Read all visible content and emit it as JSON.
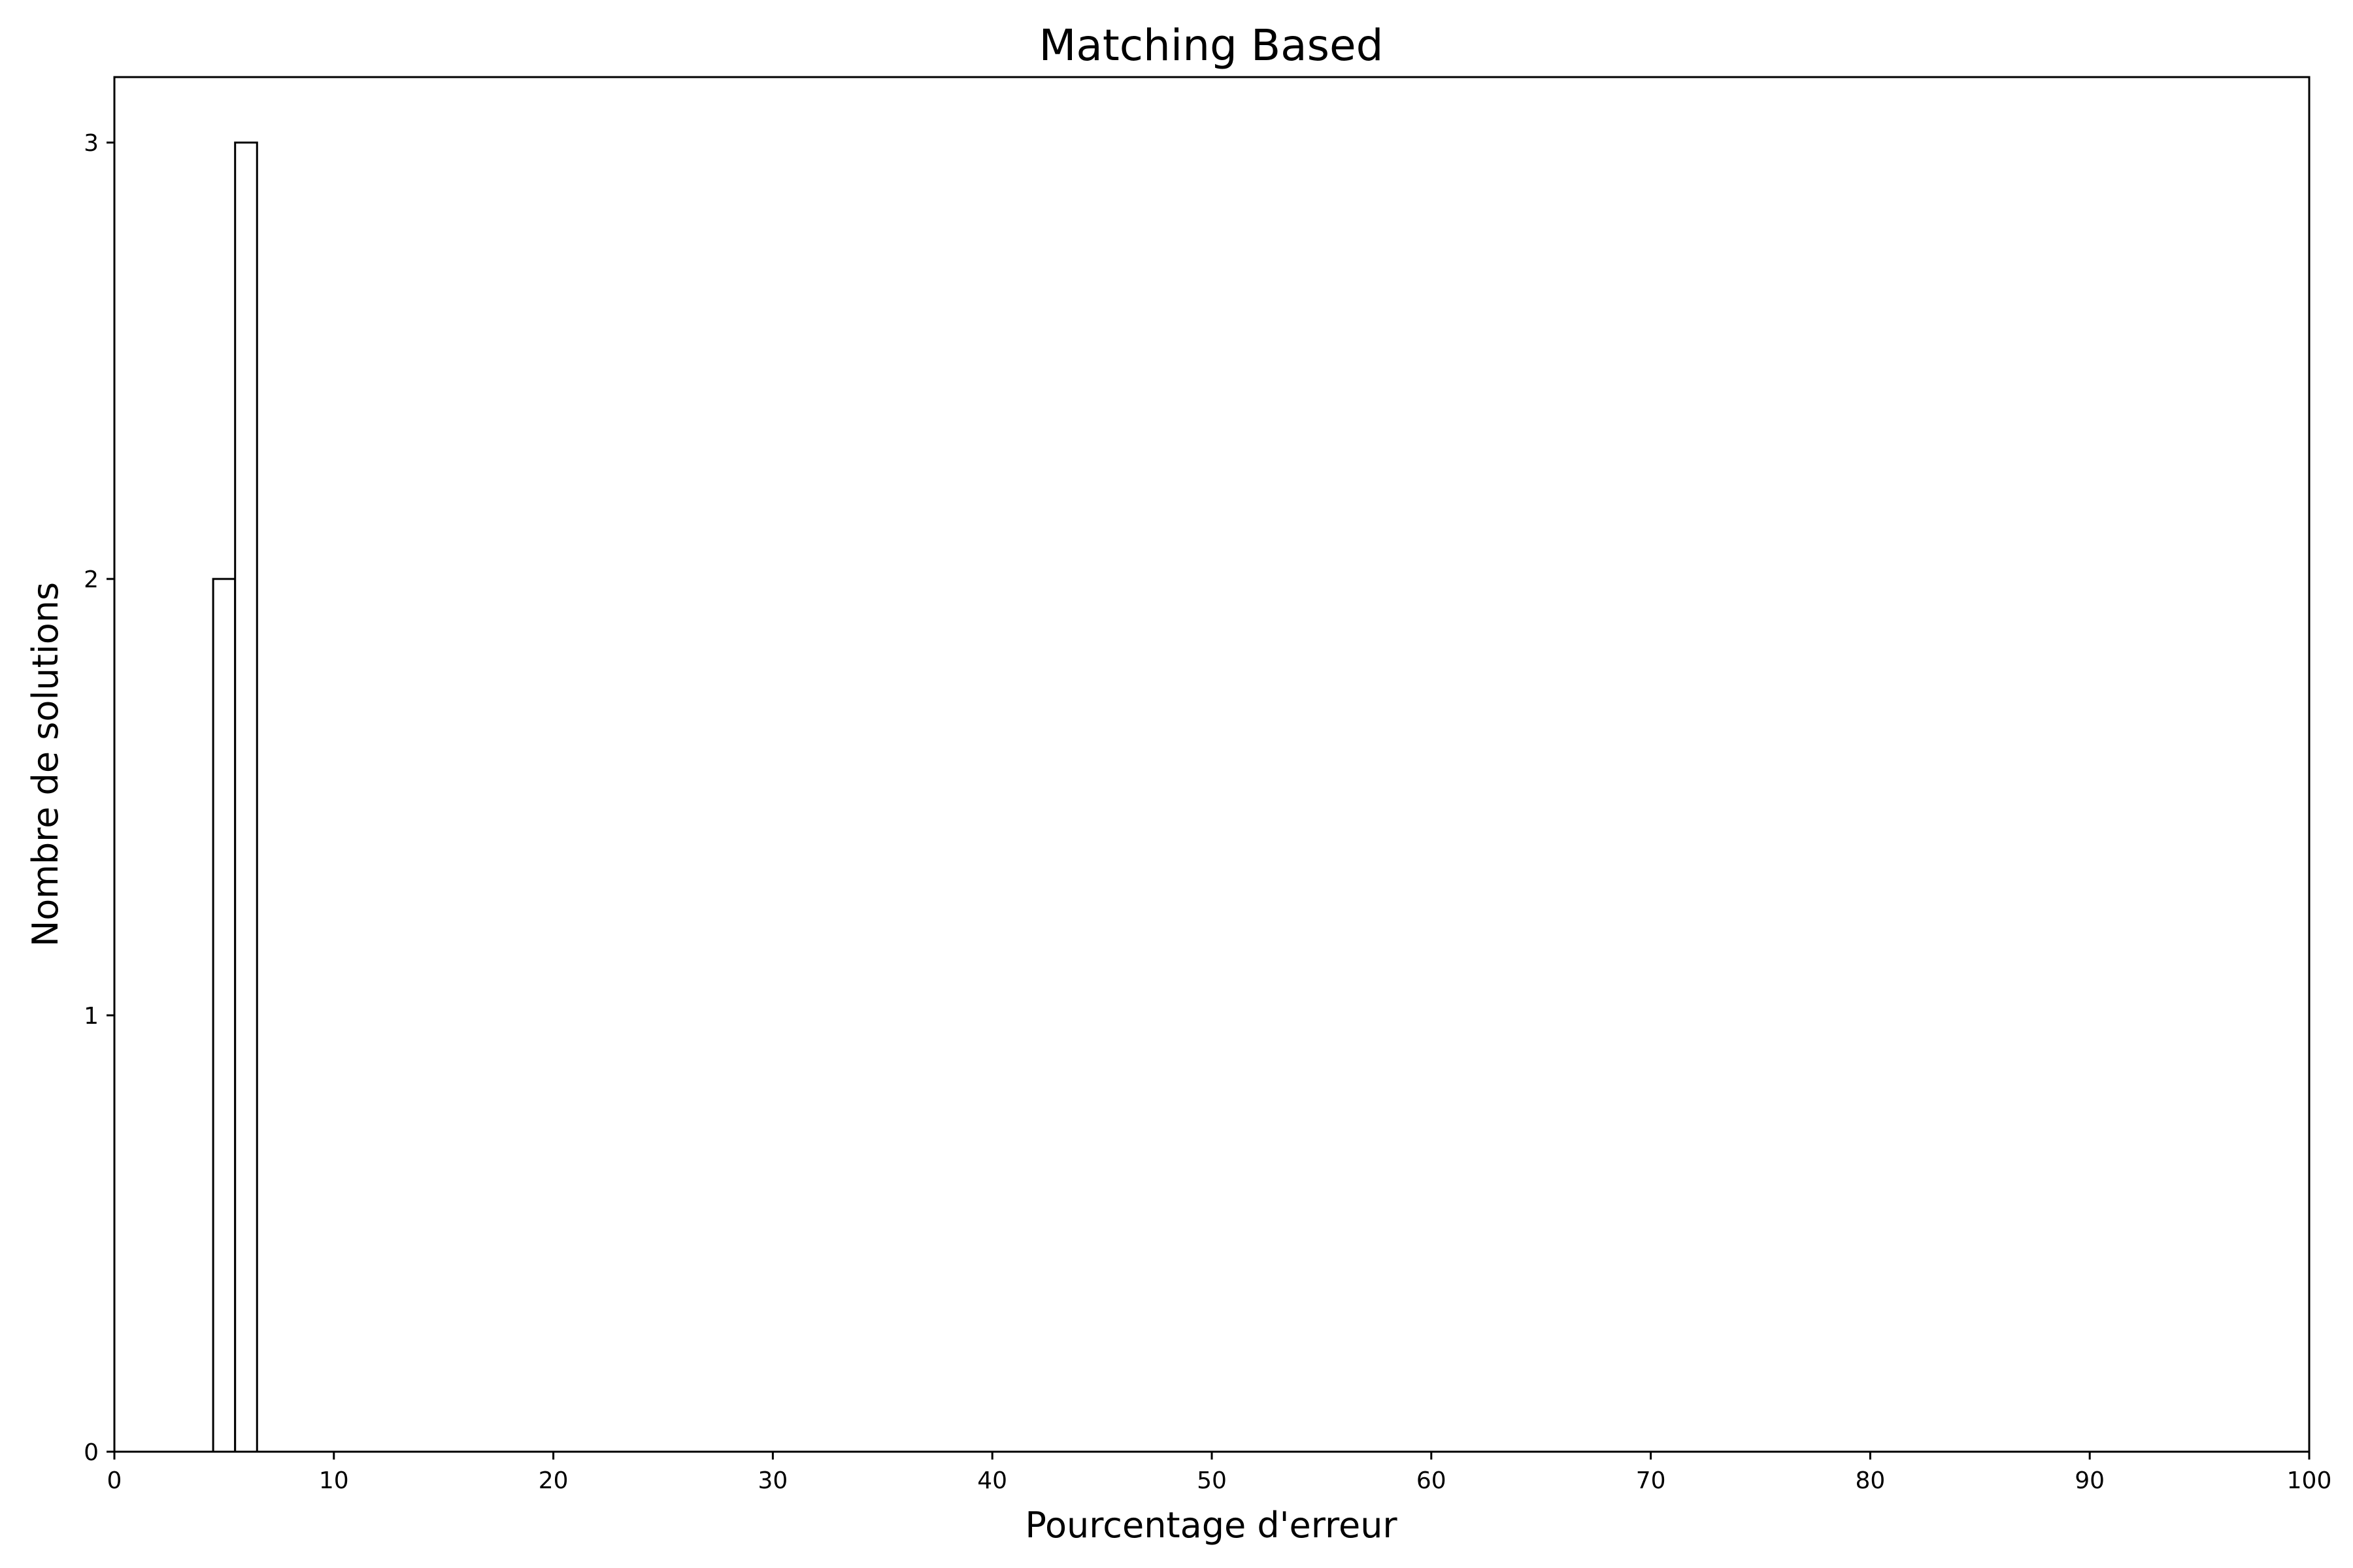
{
  "chart_data": {
    "type": "bar",
    "title": "Matching Based",
    "xlabel": "Pourcentage d'erreur",
    "ylabel": "Nombre de solutions",
    "xlim": [
      0,
      100
    ],
    "ylim": [
      0,
      3.15
    ],
    "xticks": [
      0,
      10,
      20,
      30,
      40,
      50,
      60,
      70,
      80,
      90,
      100
    ],
    "yticks": [
      0,
      1,
      2,
      3
    ],
    "bin_width": 1,
    "bins": [
      {
        "x": 5,
        "value": 2
      },
      {
        "x": 6,
        "value": 3
      }
    ],
    "grid": false,
    "bar_fill": "#ffffff",
    "bar_edge": "#000000"
  }
}
